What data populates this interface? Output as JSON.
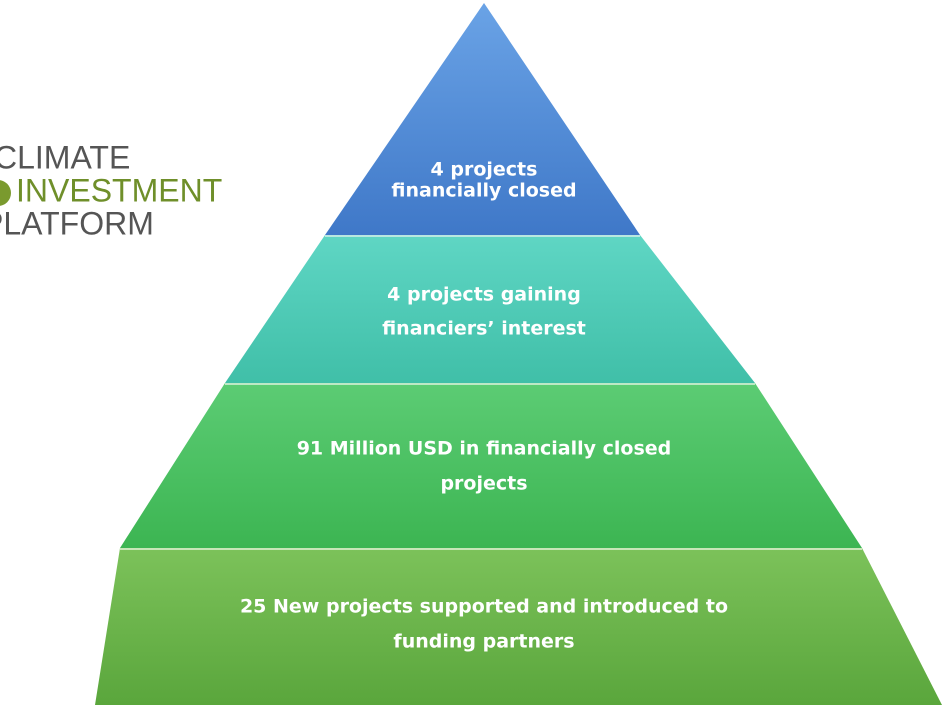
{
  "logo": {
    "lines": [
      "CLIMATE",
      "INVESTMENT",
      "PLATFORM"
    ]
  },
  "tiers": [
    {
      "lines": [
        "4 projects",
        "financially closed"
      ]
    },
    {
      "lines": [
        "4 projects gaining",
        "financiers’ interest"
      ]
    },
    {
      "lines": [
        "91 Million USD in financially closed",
        "projects"
      ]
    },
    {
      "lines": [
        "25 New projects supported and introduced to",
        "funding partners"
      ]
    }
  ]
}
